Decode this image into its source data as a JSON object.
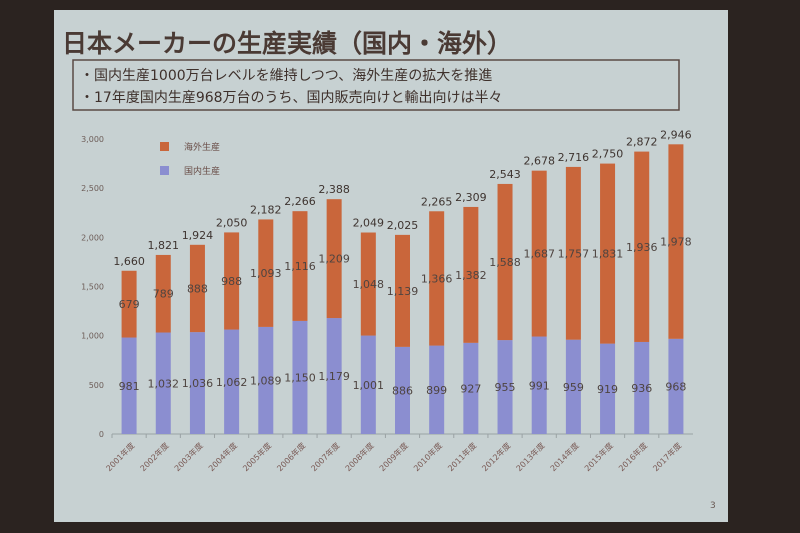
{
  "slide": {
    "title": "日本メーカーの生産実績（国内・海外）",
    "bullets": [
      "・国内生産1000万台レベルを維持しつつ、海外生産の拡大を推進",
      "・17年度国内生産968万台のうち、国内販売向けと輸出向けは半々"
    ],
    "page_number": "3"
  },
  "chart_data": {
    "type": "bar",
    "stacked": true,
    "categories": [
      "2001年度",
      "2002年度",
      "2003年度",
      "2004年度",
      "2005年度",
      "2006年度",
      "2007年度",
      "2008年度",
      "2009年度",
      "2010年度",
      "2011年度",
      "2012年度",
      "2013年度",
      "2014年度",
      "2015年度",
      "2016年度",
      "2017年度"
    ],
    "series": [
      {
        "name": "国内生産",
        "color": "#8b8ed0",
        "values": [
          981,
          1032,
          1036,
          1062,
          1089,
          1150,
          1179,
          1001,
          886,
          899,
          927,
          955,
          991,
          959,
          919,
          936,
          968
        ]
      },
      {
        "name": "海外生産",
        "color": "#c9663b",
        "values": [
          679,
          789,
          888,
          988,
          1093,
          1116,
          1209,
          1048,
          1139,
          1366,
          1382,
          1588,
          1687,
          1757,
          1831,
          1936,
          1978
        ]
      }
    ],
    "totals": [
      1660,
      1821,
      1924,
      2050,
      2182,
      2266,
      2388,
      2049,
      2025,
      2265,
      2309,
      2543,
      2678,
      2716,
      2750,
      2872,
      2946
    ],
    "ylim": [
      0,
      3000
    ],
    "yticks": [
      "0",
      "500",
      "1,000",
      "1,500",
      "2,000",
      "2,500",
      "3,000"
    ],
    "grid": false,
    "legend": "top-left"
  }
}
